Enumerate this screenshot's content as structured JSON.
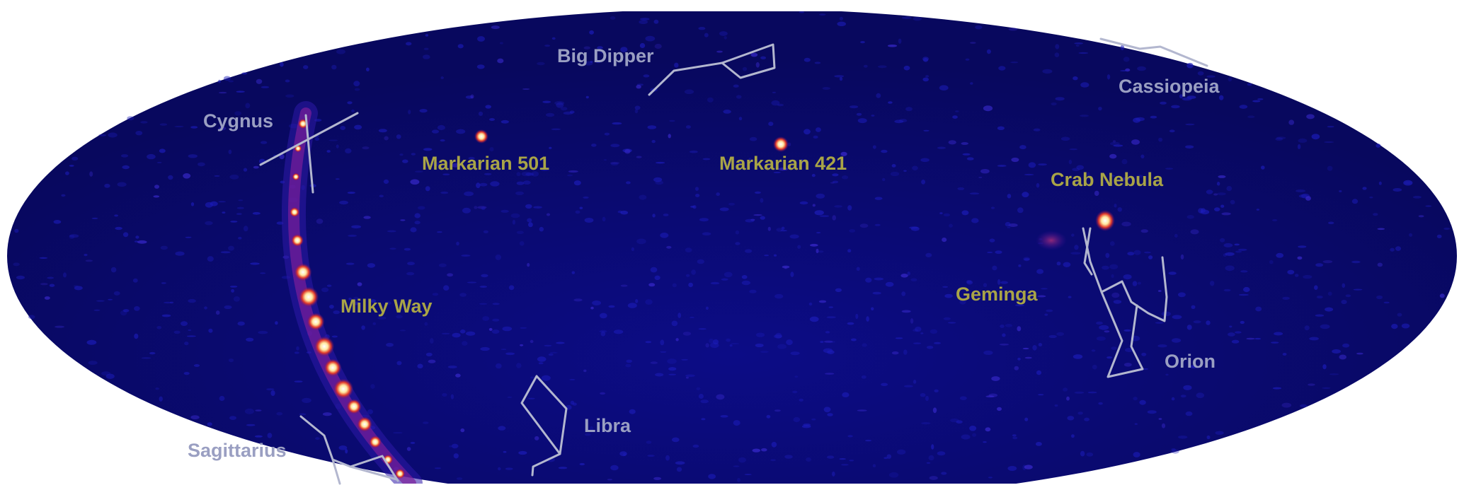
{
  "colors": {
    "sky_background": "#0b0b78",
    "constellation_label": "#9a9fc2",
    "source_label": "#a9a447",
    "constellation_line": "#b3b7cf",
    "hot_source": "#fff6d2"
  },
  "constellations": [
    {
      "key": "big-dipper",
      "label": "Big Dipper"
    },
    {
      "key": "cassiopeia",
      "label": "Cassiopeia"
    },
    {
      "key": "cygnus",
      "label": "Cygnus"
    },
    {
      "key": "sagittarius",
      "label": "Sagittarius"
    },
    {
      "key": "libra",
      "label": "Libra"
    },
    {
      "key": "orion",
      "label": "Orion"
    }
  ],
  "sources": [
    {
      "key": "markarian-501",
      "label": "Markarian 501"
    },
    {
      "key": "markarian-421",
      "label": "Markarian 421"
    },
    {
      "key": "crab-nebula",
      "label": "Crab Nebula"
    },
    {
      "key": "geminga",
      "label": "Geminga"
    },
    {
      "key": "milky-way",
      "label": "Milky Way"
    }
  ]
}
